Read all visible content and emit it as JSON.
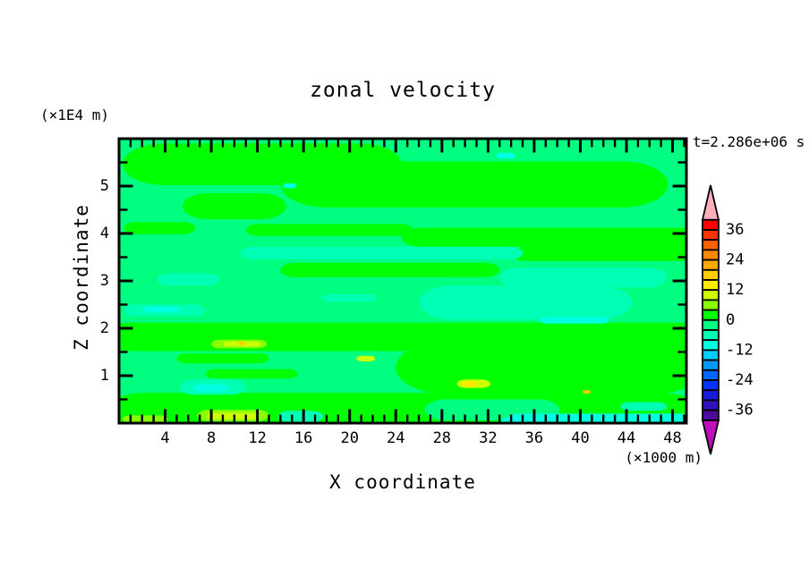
{
  "chart_data": {
    "type": "filled-contour",
    "title": "zonal velocity",
    "time_annotation": "t=2.286e+06 s",
    "xlabel": "X coordinate",
    "ylabel": "Z coordinate",
    "x_unit": "(×1000 m)",
    "y_unit": "(×1E4 m)",
    "xlim": [
      0,
      49.2
    ],
    "ylim": [
      0,
      6
    ],
    "x_major_ticks": [
      4,
      8,
      12,
      16,
      20,
      24,
      28,
      32,
      36,
      40,
      44,
      48
    ],
    "x_minor_step": 1,
    "y_major_ticks": [
      1,
      2,
      3,
      4,
      5
    ],
    "y_minor_step": 0.5,
    "background_level": "-4..0",
    "background_color": "#00ff80",
    "colorbar": {
      "orientation": "vertical",
      "level_max": 40,
      "level_min": -40,
      "level_step": 4,
      "labels": [
        36,
        24,
        12,
        0,
        -12,
        -24,
        -36
      ],
      "segment_colors_top_to_bottom": [
        "#ff0000",
        "#ff3300",
        "#ff6000",
        "#ff8800",
        "#ffaa00",
        "#ffcc00",
        "#ffea00",
        "#ccff00",
        "#88ff00",
        "#00ff00",
        "#00ff80",
        "#00ffb4",
        "#00ffe0",
        "#00ccff",
        "#0099ff",
        "#0066ff",
        "#0033ff",
        "#1a1ad9",
        "#3011bb",
        "#4d0b9e"
      ],
      "over_arrow_color": "#ffaebb",
      "under_arrow_color": "#bb10bb"
    },
    "regions": [
      {
        "x0": 0.3,
        "x1": 24.5,
        "y0": 5.02,
        "y1": 5.9,
        "level": "0..4",
        "color": "#00ff00"
      },
      {
        "x0": 14,
        "x1": 47.6,
        "y0": 4.55,
        "y1": 5.52,
        "level": "0..4",
        "color": "#00ff00"
      },
      {
        "x0": 5.5,
        "x1": 14.5,
        "y0": 4.3,
        "y1": 4.85,
        "level": "0..4",
        "color": "#00ff00"
      },
      {
        "x0": 0.4,
        "x1": 6.6,
        "y0": 3.98,
        "y1": 4.24,
        "level": "0..4",
        "color": "#00ff00"
      },
      {
        "x0": 11,
        "x1": 25.5,
        "y0": 3.95,
        "y1": 4.2,
        "level": "0..4",
        "color": "#00ff00"
      },
      {
        "x0": 24.5,
        "x1": 49.2,
        "y0": 3.72,
        "y1": 4.12,
        "level": "0..4",
        "color": "#00ff00"
      },
      {
        "x0": 34,
        "x1": 49.2,
        "y0": 3.42,
        "y1": 3.72,
        "level": "0..4",
        "color": "#00ff00"
      },
      {
        "x0": 14,
        "x1": 33,
        "y0": 3.08,
        "y1": 3.38,
        "level": "0..4",
        "color": "#00ff00"
      },
      {
        "x0": 0,
        "x1": 49.2,
        "y0": 1.52,
        "y1": 2.12,
        "level": "0..4",
        "color": "#00ff00"
      },
      {
        "x0": 24,
        "x1": 49.2,
        "y0": 0.6,
        "y1": 1.75,
        "level": "0..4",
        "color": "#00ff00"
      },
      {
        "x0": 0,
        "x1": 49.2,
        "y0": 0.0,
        "y1": 0.64,
        "level": "0..4",
        "color": "#00ff00"
      },
      {
        "x0": 5,
        "x1": 13,
        "y0": 1.26,
        "y1": 1.47,
        "level": "0..4",
        "color": "#00ff00"
      },
      {
        "x0": 7.5,
        "x1": 15.5,
        "y0": 0.94,
        "y1": 1.14,
        "level": "0..4",
        "color": "#00ff00"
      },
      {
        "x0": 26.5,
        "x1": 38.2,
        "y0": 0.06,
        "y1": 0.5,
        "level": "-4..0",
        "color": "#00ff80"
      },
      {
        "x0": 26,
        "x1": 44.5,
        "y0": 2.18,
        "y1": 2.9,
        "level": "-8..-4",
        "color": "#00ffb4"
      },
      {
        "x0": 33,
        "x1": 47.5,
        "y0": 2.86,
        "y1": 3.28,
        "level": "-8..-4",
        "color": "#00ffb4"
      },
      {
        "x0": 10.5,
        "x1": 35,
        "y0": 3.45,
        "y1": 3.72,
        "level": "-8..-4",
        "color": "#00ffb4"
      },
      {
        "x0": 3.3,
        "x1": 8.7,
        "y0": 2.9,
        "y1": 3.16,
        "level": "-8..-4",
        "color": "#00ffb4"
      },
      {
        "x0": 17.6,
        "x1": 22.3,
        "y0": 2.56,
        "y1": 2.72,
        "level": "-8..-4",
        "color": "#00ffb4"
      },
      {
        "x0": 0.4,
        "x1": 7.5,
        "y0": 2.26,
        "y1": 2.5,
        "level": "-8..-4",
        "color": "#00ffb4"
      },
      {
        "x0": 5.2,
        "x1": 11,
        "y0": 0.6,
        "y1": 0.92,
        "level": "-8..-4",
        "color": "#00ffb4"
      },
      {
        "x0": 13.8,
        "x1": 17.7,
        "y0": 0.02,
        "y1": 0.26,
        "level": "-8..-4",
        "color": "#00ffb4"
      },
      {
        "x0": 43.5,
        "x1": 47.5,
        "y0": 0.26,
        "y1": 0.44,
        "level": "-8..-4",
        "color": "#00ffb4"
      },
      {
        "x0": 6.4,
        "x1": 9.5,
        "y0": 0.66,
        "y1": 0.82,
        "level": "-12..-8",
        "color": "#00ffe0"
      },
      {
        "x0": 36.5,
        "x1": 42.5,
        "y0": 2.1,
        "y1": 2.24,
        "level": "-12..-8",
        "color": "#00ffe0"
      },
      {
        "x0": 32.7,
        "x1": 34.4,
        "y0": 5.58,
        "y1": 5.7,
        "level": "-12..-8",
        "color": "#00ffe0"
      },
      {
        "x0": 33,
        "x1": 49.2,
        "y0": 0.0,
        "y1": 0.2,
        "level": "-12..-8",
        "color": "#00ffe0"
      },
      {
        "x0": 2.1,
        "x1": 5.2,
        "y0": 2.34,
        "y1": 2.46,
        "level": "-12..-8",
        "color": "#00ffe0"
      },
      {
        "x0": 14.2,
        "x1": 15.4,
        "y0": 4.95,
        "y1": 5.06,
        "level": "-12..-8",
        "color": "#00ffe0"
      },
      {
        "x0": 8,
        "x1": 12.8,
        "y0": 1.58,
        "y1": 1.76,
        "level": "4..8",
        "color": "#88ff00"
      },
      {
        "x0": 0.3,
        "x1": 4.2,
        "y0": 0.02,
        "y1": 0.16,
        "level": "4..8",
        "color": "#88ff00"
      },
      {
        "x0": 6.8,
        "x1": 13,
        "y0": 0.04,
        "y1": 0.28,
        "level": "4..8",
        "color": "#88ff00"
      },
      {
        "x0": 9,
        "x1": 12.3,
        "y0": 1.62,
        "y1": 1.72,
        "level": "8..12",
        "color": "#ccff00"
      },
      {
        "x0": 7.6,
        "x1": 12.2,
        "y0": 0.08,
        "y1": 0.22,
        "level": "8..12",
        "color": "#ccff00"
      },
      {
        "x0": 29.3,
        "x1": 32.2,
        "y0": 0.74,
        "y1": 0.92,
        "level": "8..12",
        "color": "#ccff00"
      },
      {
        "x0": 20.6,
        "x1": 22.2,
        "y0": 1.3,
        "y1": 1.42,
        "level": "8..12",
        "color": "#ccff00"
      },
      {
        "x0": 29.8,
        "x1": 31.1,
        "y0": 0.78,
        "y1": 0.88,
        "level": "12..16",
        "color": "#ffea00"
      },
      {
        "x0": 10.3,
        "x1": 11.0,
        "y0": 1.64,
        "y1": 1.72,
        "level": "16..20",
        "color": "#ffcc00"
      },
      {
        "x0": 40.2,
        "x1": 40.9,
        "y0": 0.62,
        "y1": 0.7,
        "level": "16..20",
        "color": "#ffcc00"
      }
    ]
  }
}
